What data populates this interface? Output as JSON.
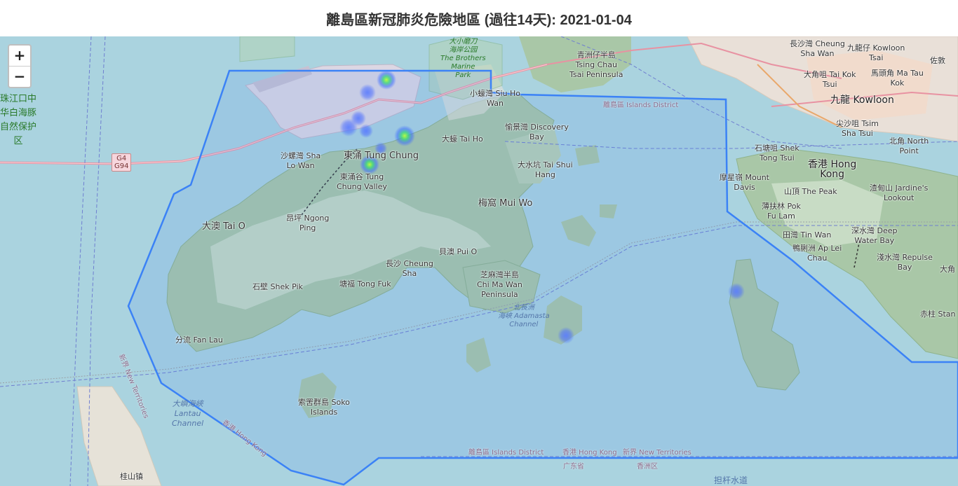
{
  "title": "離島區新冠肺炎危險地區 (過往14天): 2021-01-04",
  "zoom": {
    "in_label": "+",
    "out_label": "−"
  },
  "colors": {
    "water": "#aad3df",
    "land": "#f2efe9",
    "park": "#c8d7ab",
    "boundary": "#3b82f6",
    "heat_core": "#7cfc00",
    "heat_outer": "#3b5cff"
  },
  "labels": {
    "pearl_river_park": "珠江口中\n华白海豚\n自然保护\n区",
    "brothers_park": "大小磨刀\n海岸公园\nThe Brothers\nMarine\nPark",
    "tsing_chau": "青洲仔半島\nTsing Chau\nTsai Peninsula",
    "siu_ho_wan": "小蠔灣 Siu Ho\nWan",
    "islands_district_top": "離島區 Islands District",
    "discovery_bay": "愉景灣 Discovery\nBay",
    "tai_ho": "大蠔 Tai Ho",
    "tai_shui_hang": "大水坑 Tai Shui\nHang",
    "sha_lo_wan": "沙螺灣 Sha\nLo Wan",
    "tung_chung": "東涌 Tung Chung",
    "tung_chung_valley": "東涌谷 Tung\nChung Valley",
    "mui_wo": "梅窩 Mui Wo",
    "tai_o": "大澳 Tai O",
    "ngong_ping": "昂坪 Ngong\nPing",
    "pui_o": "貝澳 Pui O",
    "cheung_sha": "長沙 Cheung\nSha",
    "chi_ma_wan": "芝麻灣半島\nChi Ma Wan\nPeninsula",
    "shek_pik": "石壁 Shek Pik",
    "tong_fuk": "塘福 Tong Fuk",
    "fan_lau": "分流 Fan Lau",
    "adamasta": "北長洲\n海峽 Adamasta\nChannel",
    "soko": "索罟群島 Soko\nIslands",
    "lantau_channel": "大嶼海峽\nLantau\nChannel",
    "new_territories_diag": "新界 New Territories",
    "hong_kong_diag": "香港 Hong Kong",
    "islands_district_bottom": "離島區 Islands District",
    "hong_kong_bottom": "香港 Hong Kong",
    "new_territories_bottom": "新界 New Territories",
    "guangdong": "广东省",
    "xiangzhou": "香洲区",
    "guishan": "桂山镇",
    "danggan": "担杆水道",
    "cheung_sha_wan": "長沙灣 Cheung\nSha Wan",
    "kowloon_tsai": "九龍仔 Kowloon\nTsai",
    "tai_kok_tsui": "大角咀 Tai Kok\nTsui",
    "ma_tau_kok": "馬頭角 Ma Tau\nKok",
    "kowloon": "九龍 Kowloon",
    "tsim_sha_tsui": "尖沙咀 Tsim\nSha Tsui",
    "north_point": "北角 North\nPoint",
    "shek_tong_tsui": "石塘咀 Shek\nTong Tsui",
    "hong_kong_island": "香港 Hong\nKong",
    "mount_davis": "摩星嶺 Mount\nDavis",
    "the_peak": "山頂 The Peak",
    "jardines_lookout": "渣甸山 Jardine's\nLookout",
    "pok_fu_lam": "薄扶林 Pok\nFu Lam",
    "tin_wan": "田灣 Tin Wan",
    "ap_lei_chau": "鴨脷洲 Ap Lei\nChau",
    "deep_water_bay": "深水灣 Deep\nWater Bay",
    "repulse_bay": "淺水灣 Repulse\nBay",
    "stanley": "赤柱 Stan",
    "tai_hang": "大角",
    "sai_kung_kok": "佐敦",
    "road_g4": "G4\nG94"
  }
}
